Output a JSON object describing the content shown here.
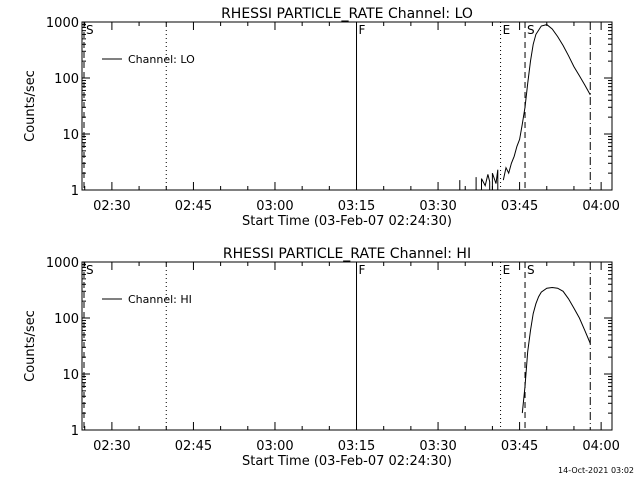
{
  "footer": {
    "timestamp": "14-Oct-2021 03:02"
  },
  "chart_data": [
    {
      "type": "line",
      "title": "RHESSI PARTICLE_RATE Channel: LO",
      "xlabel": "Start Time (03-Feb-07 02:24:30)",
      "ylabel": "Counts/sec",
      "yscale": "log",
      "ylim": [
        1,
        1000
      ],
      "xlim": [
        "02:24:30",
        "04:02:00"
      ],
      "xticks": [
        "02:30",
        "02:45",
        "03:00",
        "03:15",
        "03:30",
        "03:45",
        "04:00"
      ],
      "yticks": [
        "1",
        "10",
        "100",
        "1000"
      ],
      "legend": {
        "label": "Channel: LO",
        "placement": "top-left"
      },
      "markers": [
        {
          "label": "S",
          "time": "02:24:30",
          "style": "dashed"
        },
        {
          "label": "",
          "time": "02:40:00",
          "style": "dotted"
        },
        {
          "label": "F",
          "time": "03:15:00",
          "style": "solid"
        },
        {
          "label": "E",
          "time": "03:41:30",
          "style": "dotted"
        },
        {
          "label": "S",
          "time": "03:46:00",
          "style": "dashed"
        },
        {
          "label": "",
          "time": "03:58:00",
          "style": "dashdot"
        }
      ],
      "series": [
        {
          "name": "Channel: LO",
          "x": [
            "03:34:00",
            "03:34:00",
            "03:34:00"
          ],
          "y": [
            1.0,
            1.5,
            1.0
          ]
        },
        {
          "name": "Channel: LO",
          "x": [
            "03:37:00",
            "03:37:00",
            "03:37:00"
          ],
          "y": [
            1.0,
            1.7,
            1.0
          ]
        },
        {
          "name": "Channel: LO",
          "x": [
            "03:38:00",
            "03:38:00",
            "03:38:40",
            "03:39:10",
            "03:39:30",
            "03:39:30"
          ],
          "y": [
            1.0,
            1.6,
            1.2,
            1.9,
            1.4,
            1.0
          ]
        },
        {
          "name": "Channel: LO",
          "x": [
            "03:40:00",
            "03:40:00",
            "03:40:40",
            "03:41:00",
            "03:41:00"
          ],
          "y": [
            1.0,
            2.0,
            1.3,
            2.3,
            1.0
          ]
        },
        {
          "name": "Channel: LO",
          "x": [
            "03:42:00",
            "03:42:30",
            "03:43:00",
            "03:43:30",
            "03:44:00",
            "03:44:30",
            "03:45:00",
            "03:45:30",
            "03:46:00",
            "03:46:30",
            "03:47:00",
            "03:47:30",
            "03:48:00",
            "03:49:00",
            "03:50:00",
            "03:51:00",
            "03:52:00",
            "03:53:00",
            "03:54:00",
            "03:55:00",
            "03:56:00",
            "03:57:00",
            "03:58:00"
          ],
          "y": [
            1.5,
            2.5,
            2.0,
            3.0,
            4.0,
            6.0,
            8.0,
            15,
            30,
            80,
            200,
            400,
            600,
            850,
            900,
            750,
            550,
            380,
            250,
            160,
            110,
            75,
            50
          ]
        }
      ]
    },
    {
      "type": "line",
      "title": "RHESSI PARTICLE_RATE Channel: HI",
      "xlabel": "Start Time (03-Feb-07 02:24:30)",
      "ylabel": "Counts/sec",
      "yscale": "log",
      "ylim": [
        1,
        1000
      ],
      "xlim": [
        "02:24:30",
        "04:02:00"
      ],
      "xticks": [
        "02:30",
        "02:45",
        "03:00",
        "03:15",
        "03:30",
        "03:45",
        "04:00"
      ],
      "yticks": [
        "1",
        "10",
        "100",
        "1000"
      ],
      "legend": {
        "label": "Channel: HI",
        "placement": "top-left"
      },
      "markers": [
        {
          "label": "S",
          "time": "02:24:30",
          "style": "dashed"
        },
        {
          "label": "",
          "time": "02:40:00",
          "style": "dotted"
        },
        {
          "label": "F",
          "time": "03:15:00",
          "style": "solid"
        },
        {
          "label": "E",
          "time": "03:41:30",
          "style": "dotted"
        },
        {
          "label": "S",
          "time": "03:46:00",
          "style": "dashed"
        },
        {
          "label": "",
          "time": "03:58:00",
          "style": "dashdot"
        }
      ],
      "series": [
        {
          "name": "Channel: HI",
          "x": [
            "03:45:30",
            "03:46:00",
            "03:46:30",
            "03:47:00",
            "03:47:30",
            "03:48:00",
            "03:48:30",
            "03:49:00",
            "03:50:00",
            "03:51:00",
            "03:52:00",
            "03:53:00",
            "03:54:00",
            "03:55:00",
            "03:56:00",
            "03:57:00",
            "03:58:00"
          ],
          "y": [
            2.0,
            6.0,
            25,
            60,
            120,
            180,
            240,
            290,
            340,
            350,
            340,
            300,
            220,
            150,
            100,
            60,
            35
          ]
        }
      ]
    }
  ]
}
